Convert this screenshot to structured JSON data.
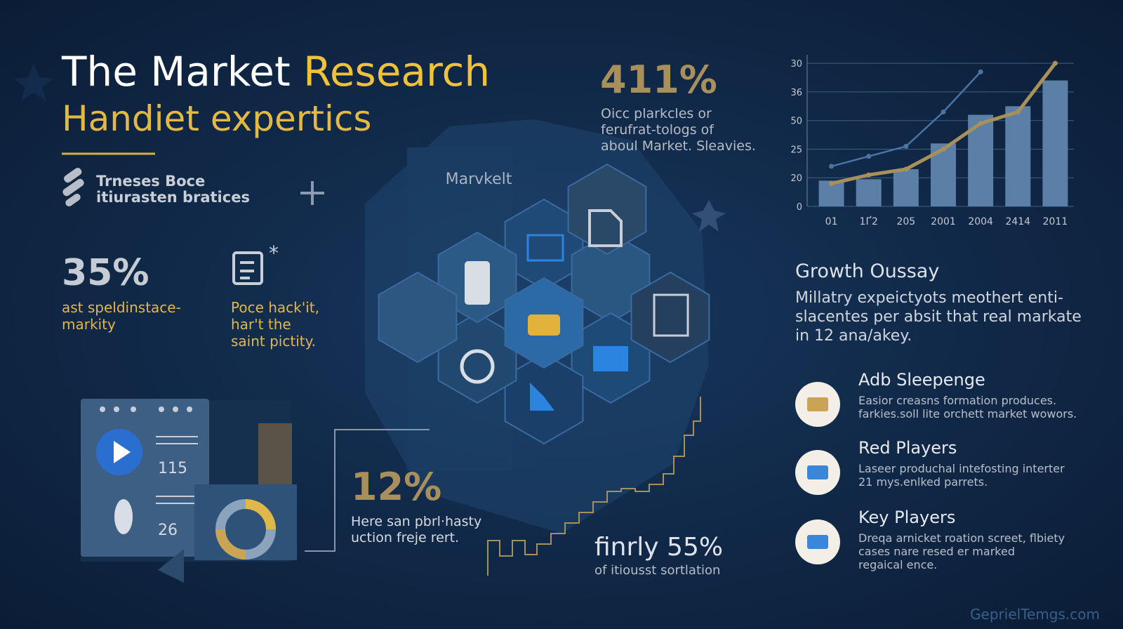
{
  "header": {
    "title_white": "The Market",
    "title_gold": "Research",
    "subtitle": "Handiet expertics"
  },
  "badge": {
    "lines": [
      "Trneses Boce",
      "itiurasten bratices"
    ]
  },
  "stats": [
    {
      "value": "35%",
      "lines": [
        "ast speldinstace-",
        "markity"
      ]
    },
    {
      "lines": [
        "Poce hack'it,",
        "har't the",
        "saint pictity."
      ]
    },
    {
      "value": "411%",
      "lines": [
        "Oicc plarkcles or",
        "ferufrat-tologs of",
        "aboul Market. Sleavies."
      ]
    },
    {
      "value": "12%",
      "lines": [
        "Here san pbrl·hasty",
        "uction freje rert."
      ]
    },
    {
      "value": "finrly 55%",
      "lines": [
        "of itiousst sortlation"
      ]
    }
  ],
  "hub_label": "Marvkelt",
  "panel": {
    "values": [
      "115",
      "26"
    ]
  },
  "growth": {
    "title": "Growth Oussay",
    "lines": [
      "Millatry expeictyots  meothert enti-",
      "slacentes per absit that real markate",
      "in 12 ana/akey."
    ]
  },
  "features": [
    {
      "title": "Adb Sleepenge",
      "lines": [
        "Easior creasns formation produces.",
        "farkies.soll lite orchett market wowors."
      ]
    },
    {
      "title": "Red Players",
      "lines": [
        "Laseer produchal intefosting interter",
        "21 mys.enlked parrets."
      ]
    },
    {
      "title": "Key Players",
      "lines": [
        "Dreqa arnicket roation screet, flbiety",
        "cases nare resed er marked",
        "regaical ence."
      ]
    }
  ],
  "footer": "GeprielTemgs.com",
  "chart_data": {
    "type": "bar",
    "categories": [
      "01",
      "1Ґ2",
      "205",
      "2001",
      "2004",
      "2414",
      "2011"
    ],
    "values": [
      9,
      9.5,
      13,
      22,
      32,
      35,
      44
    ],
    "color": "#5b7fa6",
    "series": [
      {
        "color": "#a8905a",
        "values": [
          8,
          11,
          13,
          20,
          29,
          33,
          50
        ]
      },
      {
        "color": "#4a74a8",
        "values": [
          14,
          17.5,
          21,
          33,
          47,
          null,
          null
        ]
      }
    ],
    "ylim": [
      0,
      52
    ],
    "yticks": [
      0,
      {
        "value": 10,
        "label": "20"
      },
      {
        "value": 20,
        "label": "25"
      },
      {
        "value": 30,
        "label": "50"
      },
      {
        "value": 40,
        "label": "36"
      },
      {
        "value": 50,
        "label": "30"
      }
    ],
    "grid": true
  }
}
